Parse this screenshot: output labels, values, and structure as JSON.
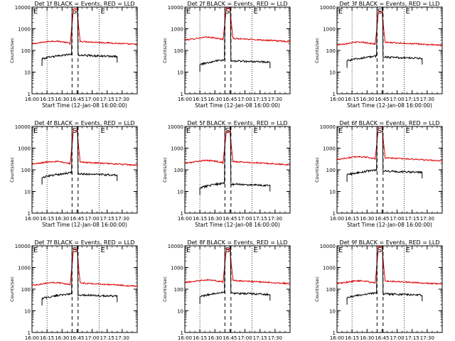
{
  "chart_data": {
    "type": "line",
    "shared": {
      "xlabel": "Start Time (12-Jan-08 16:00:00)",
      "ylabel": "Counts/sec",
      "x_ticks": [
        "16:00",
        "16:15",
        "16:30",
        "16:45",
        "17:00",
        "17:15",
        "17:30"
      ],
      "x_range_minutes": [
        0,
        105
      ],
      "y_ticks": [
        "1",
        "10",
        "100",
        "1000",
        "10000"
      ],
      "ylim": [
        1,
        10000
      ],
      "ylog": true,
      "series_colors": {
        "events": "#000000",
        "lld": "#dd0000"
      },
      "dotted_lines_minutes": [
        15,
        67
      ],
      "dashed_lines_minutes": [
        40,
        46
      ],
      "annotations": {
        "E": "E",
        "S": "S"
      }
    },
    "panels": [
      {
        "title": "Det 1f BLACK = Events, RED = LLD",
        "events_base": 55,
        "lld_base": 200,
        "events_start": 10,
        "events_end": 85,
        "lld_peak": 8000,
        "lld_end_level": 220
      },
      {
        "title": "Det 2f BLACK = Events, RED = LLD",
        "events_base": 30,
        "lld_base": 300,
        "events_start": 15,
        "events_end": 85,
        "lld_peak": 9000,
        "lld_end_level": 300
      },
      {
        "title": "Det 3f BLACK = Events, RED = LLD",
        "events_base": 45,
        "lld_base": 180,
        "events_start": 10,
        "events_end": 85,
        "lld_peak": 6000,
        "lld_end_level": 200
      },
      {
        "title": "Det 4f BLACK = Events, RED = LLD",
        "events_base": 60,
        "lld_base": 180,
        "events_start": 10,
        "events_end": 85,
        "lld_peak": 7000,
        "lld_end_level": 190
      },
      {
        "title": "Det 5f BLACK = Events, RED = LLD",
        "events_base": 20,
        "lld_base": 200,
        "events_start": 15,
        "events_end": 85,
        "lld_peak": 6000,
        "lld_end_level": 200
      },
      {
        "title": "Det 6f BLACK = Events, RED = LLD",
        "events_base": 80,
        "lld_base": 300,
        "events_start": 10,
        "events_end": 85,
        "lld_peak": 10000,
        "lld_end_level": 300
      },
      {
        "title": "Det 7f BLACK = Events, RED = LLD",
        "events_base": 50,
        "lld_base": 150,
        "events_start": 10,
        "events_end": 85,
        "lld_peak": 7000,
        "lld_end_level": 160
      },
      {
        "title": "Det 8f BLACK = Events, RED = LLD",
        "events_base": 60,
        "lld_base": 200,
        "events_start": 15,
        "events_end": 85,
        "lld_peak": 7000,
        "lld_end_level": 210
      },
      {
        "title": "Det 9f BLACK = Events, RED = LLD",
        "events_base": 55,
        "lld_base": 180,
        "events_start": 10,
        "events_end": 85,
        "lld_peak": 9000,
        "lld_end_level": 200
      }
    ]
  }
}
